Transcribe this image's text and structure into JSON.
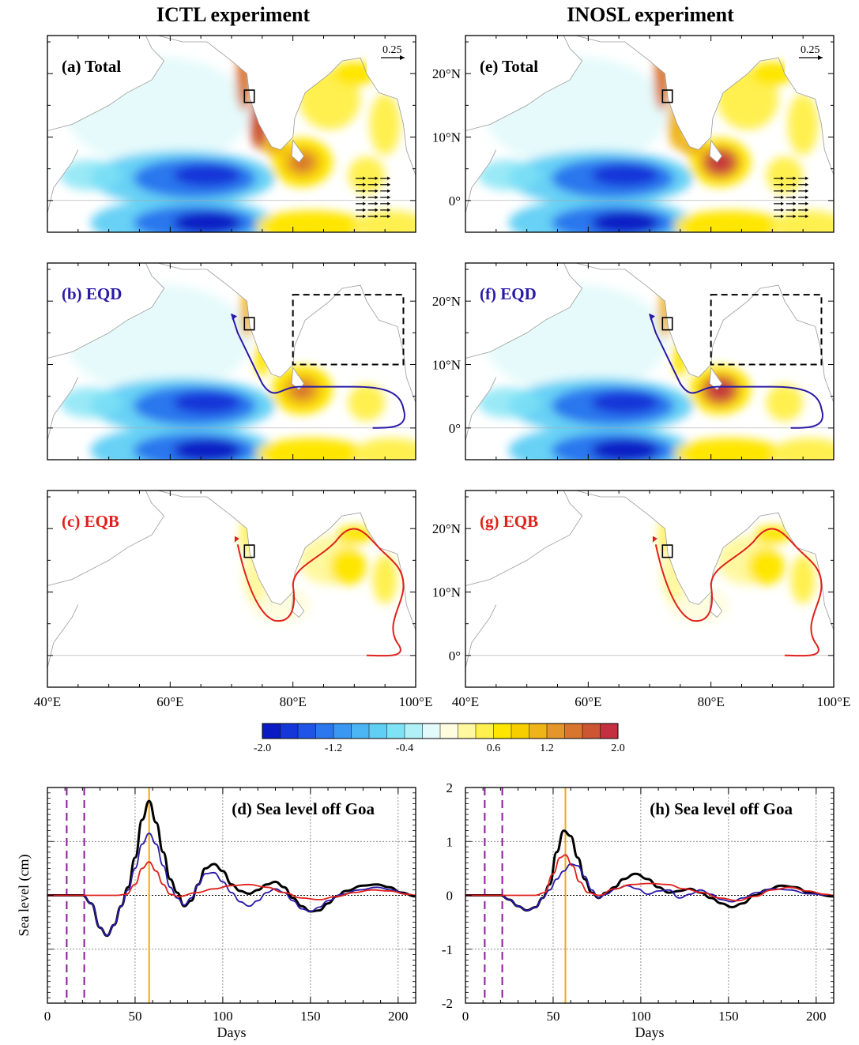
{
  "titles": {
    "left": "ICTL experiment",
    "right": "INOSL experiment"
  },
  "maps": {
    "panels": [
      {
        "id": "a",
        "label": "(a) Total",
        "label_color": "#000000",
        "column": "left",
        "row": 0,
        "vector_scale": "0.25"
      },
      {
        "id": "b",
        "label": "(b) EQD",
        "label_color": "#2a1aa8",
        "column": "left",
        "row": 1
      },
      {
        "id": "c",
        "label": "(c) EQB",
        "label_color": "#e0201a",
        "column": "left",
        "row": 2
      },
      {
        "id": "e",
        "label": "(e) Total",
        "label_color": "#000000",
        "column": "right",
        "row": 0,
        "vector_scale": "0.25"
      },
      {
        "id": "f",
        "label": "(f) EQD",
        "label_color": "#2a1aa8",
        "column": "right",
        "row": 1
      },
      {
        "id": "g",
        "label": "(g) EQB",
        "label_color": "#e0201a",
        "column": "right",
        "row": 2
      }
    ],
    "lat_ticks": [
      "20°N",
      "10°N",
      "0°"
    ],
    "lon_ticks": [
      "40°E",
      "60°E",
      "80°E",
      "100°E"
    ]
  },
  "colorbar": {
    "tick_labels": [
      "-2.0",
      "-1.2",
      "-0.4",
      "0.6",
      "1.2",
      "2.0"
    ],
    "colors": [
      "#0a1bc4",
      "#1536d8",
      "#1f55e6",
      "#2a77ee",
      "#3a98f2",
      "#4cb6f4",
      "#5fcff4",
      "#80e3f5",
      "#b0f0f7",
      "#e3fafb",
      "#fffde0",
      "#fff8a0",
      "#fff050",
      "#ffe600",
      "#f7cf00",
      "#eeb418",
      "#e4962a",
      "#d8752e",
      "#cc5532",
      "#c43040"
    ]
  },
  "chart_data": [
    {
      "type": "line",
      "title": "(d) Sea level off Goa",
      "xlabel": "Days",
      "ylabel": "Sea level (cm)",
      "xlim": [
        0,
        210
      ],
      "ylim": [
        -2,
        2
      ],
      "x_ticks": [
        0,
        50,
        100,
        150,
        200
      ],
      "y_ticks": [
        2,
        1,
        0,
        -1,
        -2
      ],
      "show_y_tick_labels": false,
      "forcing_window_days": [
        11,
        21
      ],
      "peak_day": 58,
      "series": [
        {
          "color": "#000000",
          "points": [
            [
              0,
              0
            ],
            [
              20,
              0
            ],
            [
              25,
              -0.15
            ],
            [
              30,
              -0.6
            ],
            [
              34,
              -0.75
            ],
            [
              38,
              -0.55
            ],
            [
              42,
              -0.2
            ],
            [
              46,
              0.15
            ],
            [
              50,
              0.7
            ],
            [
              54,
              1.4
            ],
            [
              58,
              1.75
            ],
            [
              62,
              1.35
            ],
            [
              66,
              0.8
            ],
            [
              70,
              0.3
            ],
            [
              74,
              0.05
            ],
            [
              78,
              -0.2
            ],
            [
              82,
              -0.1
            ],
            [
              86,
              0.2
            ],
            [
              90,
              0.5
            ],
            [
              95,
              0.58
            ],
            [
              100,
              0.45
            ],
            [
              105,
              0.2
            ],
            [
              110,
              0.08
            ],
            [
              115,
              0.03
            ],
            [
              120,
              0.1
            ],
            [
              125,
              0.2
            ],
            [
              130,
              0.25
            ],
            [
              135,
              0.15
            ],
            [
              140,
              -0.05
            ],
            [
              145,
              -0.2
            ],
            [
              150,
              -0.3
            ],
            [
              155,
              -0.28
            ],
            [
              160,
              -0.15
            ],
            [
              165,
              -0.02
            ],
            [
              170,
              0.08
            ],
            [
              180,
              0.18
            ],
            [
              188,
              0.2
            ],
            [
              195,
              0.15
            ],
            [
              202,
              0.05
            ],
            [
              210,
              -0.02
            ]
          ]
        },
        {
          "color": "#2a1aa8",
          "points": [
            [
              0,
              0
            ],
            [
              20,
              0
            ],
            [
              25,
              -0.15
            ],
            [
              30,
              -0.6
            ],
            [
              34,
              -0.75
            ],
            [
              38,
              -0.55
            ],
            [
              42,
              -0.2
            ],
            [
              46,
              0.1
            ],
            [
              50,
              0.5
            ],
            [
              54,
              0.95
            ],
            [
              58,
              1.15
            ],
            [
              62,
              0.95
            ],
            [
              66,
              0.55
            ],
            [
              70,
              0.15
            ],
            [
              74,
              -0.05
            ],
            [
              78,
              -0.18
            ],
            [
              82,
              -0.05
            ],
            [
              86,
              0.2
            ],
            [
              90,
              0.4
            ],
            [
              95,
              0.42
            ],
            [
              100,
              0.25
            ],
            [
              105,
              0.05
            ],
            [
              110,
              -0.12
            ],
            [
              115,
              -0.2
            ],
            [
              120,
              -0.1
            ],
            [
              125,
              0.05
            ],
            [
              130,
              0.12
            ],
            [
              135,
              0.05
            ],
            [
              140,
              -0.1
            ],
            [
              145,
              -0.25
            ],
            [
              150,
              -0.3
            ],
            [
              155,
              -0.22
            ],
            [
              160,
              -0.1
            ],
            [
              168,
              0.02
            ],
            [
              178,
              0.1
            ],
            [
              188,
              0.15
            ],
            [
              196,
              0.1
            ],
            [
              204,
              0.03
            ],
            [
              210,
              0
            ]
          ]
        },
        {
          "color": "#e0201a",
          "points": [
            [
              0,
              0
            ],
            [
              40,
              0
            ],
            [
              45,
              0.02
            ],
            [
              50,
              0.2
            ],
            [
              54,
              0.5
            ],
            [
              58,
              0.62
            ],
            [
              62,
              0.45
            ],
            [
              66,
              0.2
            ],
            [
              70,
              0.02
            ],
            [
              75,
              -0.02
            ],
            [
              85,
              0.05
            ],
            [
              95,
              0.12
            ],
            [
              105,
              0.18
            ],
            [
              115,
              0.2
            ],
            [
              125,
              0.15
            ],
            [
              135,
              0.05
            ],
            [
              145,
              -0.05
            ],
            [
              155,
              -0.08
            ],
            [
              165,
              -0.02
            ],
            [
              175,
              0.05
            ],
            [
              185,
              0.1
            ],
            [
              195,
              0.08
            ],
            [
              205,
              0.02
            ],
            [
              210,
              0
            ]
          ]
        }
      ]
    },
    {
      "type": "line",
      "title": "(h) Sea level off Goa",
      "xlabel": "Days",
      "ylabel": "",
      "xlim": [
        0,
        210
      ],
      "ylim": [
        -2,
        2
      ],
      "x_ticks": [
        0,
        50,
        100,
        150,
        200
      ],
      "y_ticks": [
        2,
        1,
        0,
        -1,
        -2
      ],
      "show_y_tick_labels": true,
      "forcing_window_days": [
        11,
        21
      ],
      "peak_day": 57,
      "series": [
        {
          "color": "#000000",
          "points": [
            [
              0,
              0
            ],
            [
              20,
              0
            ],
            [
              25,
              -0.08
            ],
            [
              30,
              -0.2
            ],
            [
              35,
              -0.28
            ],
            [
              40,
              -0.22
            ],
            [
              44,
              -0.05
            ],
            [
              48,
              0.2
            ],
            [
              52,
              0.8
            ],
            [
              56,
              1.2
            ],
            [
              60,
              1.1
            ],
            [
              64,
              0.7
            ],
            [
              68,
              0.3
            ],
            [
              72,
              0.05
            ],
            [
              76,
              -0.05
            ],
            [
              80,
              0.05
            ],
            [
              85,
              0.15
            ],
            [
              90,
              0.3
            ],
            [
              97,
              0.4
            ],
            [
              104,
              0.3
            ],
            [
              110,
              0.15
            ],
            [
              116,
              0.05
            ],
            [
              122,
              0.08
            ],
            [
              128,
              0.12
            ],
            [
              134,
              0.05
            ],
            [
              140,
              -0.05
            ],
            [
              146,
              -0.15
            ],
            [
              152,
              -0.22
            ],
            [
              158,
              -0.15
            ],
            [
              165,
              0
            ],
            [
              172,
              0.1
            ],
            [
              180,
              0.18
            ],
            [
              188,
              0.15
            ],
            [
              196,
              0.05
            ],
            [
              210,
              -0.02
            ]
          ]
        },
        {
          "color": "#2a1aa8",
          "points": [
            [
              0,
              0
            ],
            [
              20,
              0
            ],
            [
              25,
              -0.08
            ],
            [
              30,
              -0.2
            ],
            [
              35,
              -0.28
            ],
            [
              40,
              -0.22
            ],
            [
              44,
              -0.05
            ],
            [
              48,
              0.1
            ],
            [
              52,
              0.3
            ],
            [
              56,
              0.45
            ],
            [
              60,
              0.58
            ],
            [
              64,
              0.55
            ],
            [
              68,
              0.35
            ],
            [
              72,
              0.1
            ],
            [
              76,
              -0.05
            ],
            [
              80,
              0.02
            ],
            [
              86,
              0.12
            ],
            [
              92,
              0.18
            ],
            [
              98,
              0.12
            ],
            [
              104,
              0.02
            ],
            [
              110,
              0.08
            ],
            [
              116,
              0.1
            ],
            [
              122,
              -0.05
            ],
            [
              128,
              0.02
            ],
            [
              134,
              0.1
            ],
            [
              140,
              0.02
            ],
            [
              146,
              -0.08
            ],
            [
              152,
              -0.12
            ],
            [
              158,
              -0.05
            ],
            [
              166,
              0.05
            ],
            [
              175,
              0.12
            ],
            [
              185,
              0.1
            ],
            [
              195,
              0.03
            ],
            [
              210,
              0
            ]
          ]
        },
        {
          "color": "#e0201a",
          "points": [
            [
              0,
              0
            ],
            [
              40,
              0
            ],
            [
              45,
              0.05
            ],
            [
              50,
              0.4
            ],
            [
              54,
              0.7
            ],
            [
              57,
              0.75
            ],
            [
              61,
              0.55
            ],
            [
              65,
              0.25
            ],
            [
              70,
              0.05
            ],
            [
              76,
              0
            ],
            [
              85,
              0.12
            ],
            [
              95,
              0.2
            ],
            [
              105,
              0.22
            ],
            [
              115,
              0.2
            ],
            [
              125,
              0.12
            ],
            [
              135,
              0.05
            ],
            [
              145,
              -0.05
            ],
            [
              155,
              -0.1
            ],
            [
              165,
              -0.02
            ],
            [
              175,
              0.1
            ],
            [
              185,
              0.15
            ],
            [
              195,
              0.08
            ],
            [
              205,
              0.02
            ],
            [
              210,
              0
            ]
          ]
        }
      ]
    }
  ]
}
